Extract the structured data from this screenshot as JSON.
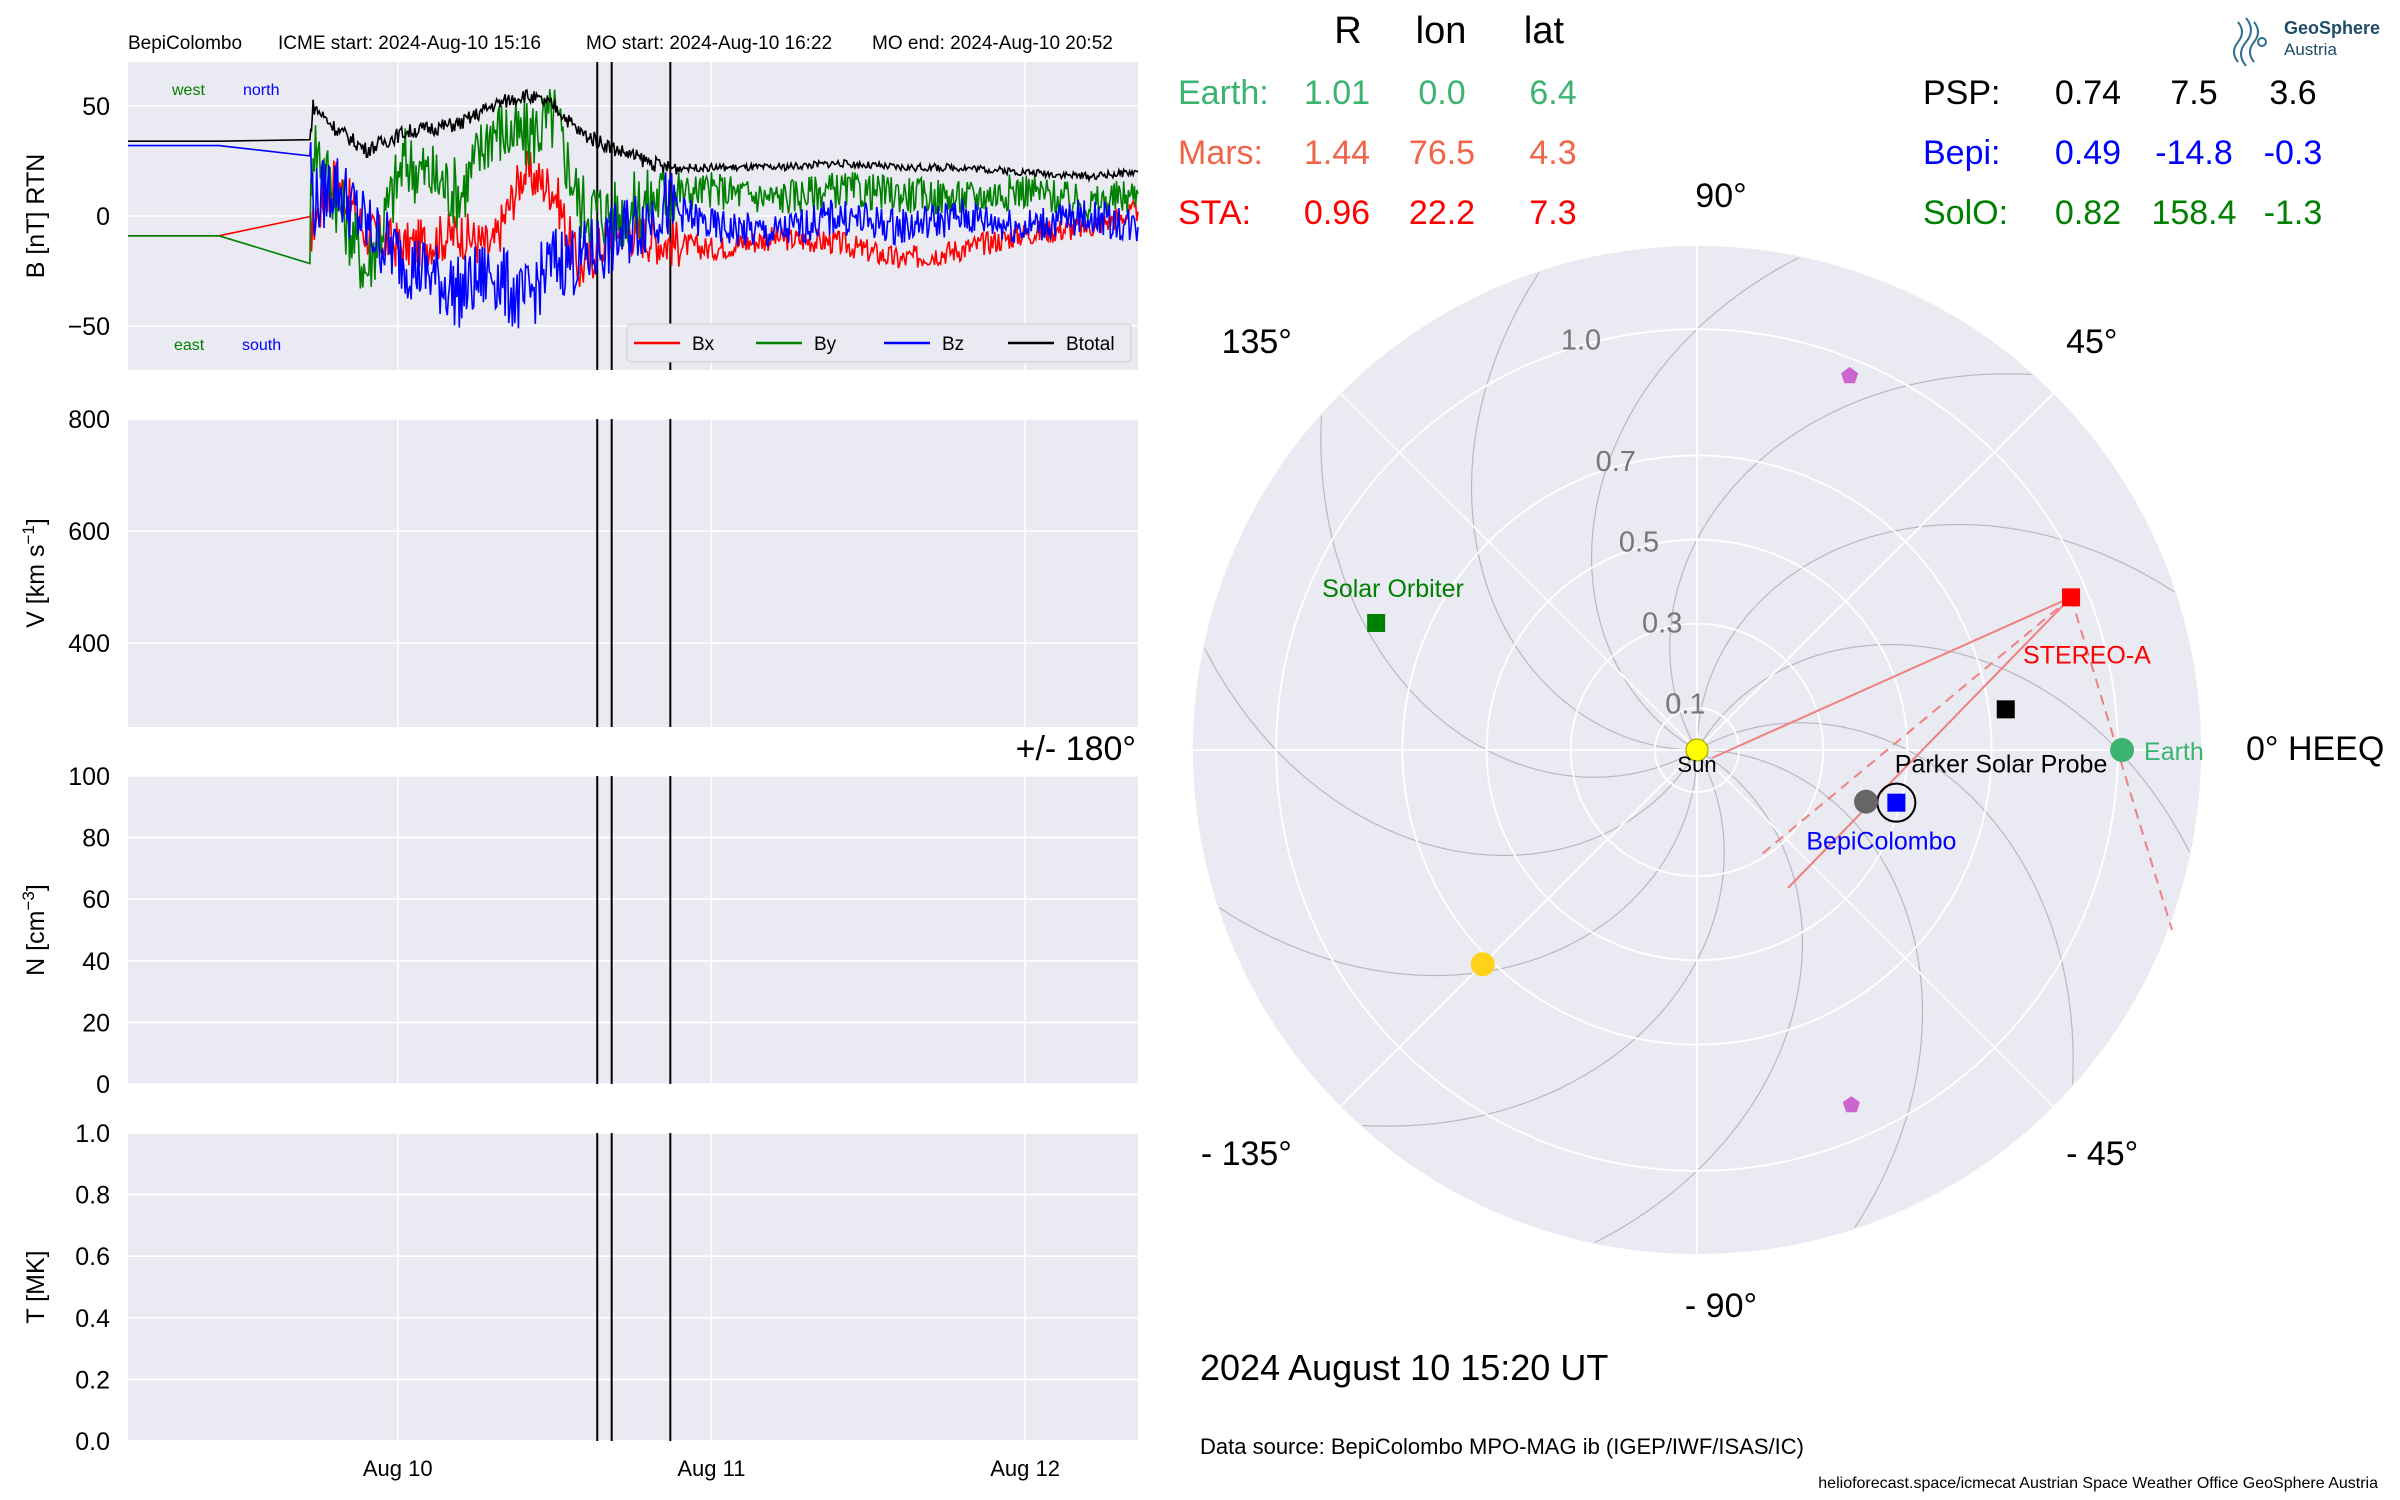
{
  "header": {
    "spacecraft": "BepiColombo",
    "icme_start": "ICME start: 2024-Aug-10 15:16",
    "mo_start": "MO start: 2024-Aug-10 16:22",
    "mo_end": "MO end: 2024-Aug-10 20:52"
  },
  "logo": {
    "name": "GeoSphere",
    "sub": "Austria"
  },
  "date_label": "2024 August 10  15:20 UT",
  "data_source": "Data source: BepiColombo MPO-MAG ib (IGEP/IWF/ISAS/IC)",
  "credits": "helioforecast.space/icmecat   Austrian Space Weather Office   GeoSphere Austria",
  "colors": {
    "panel_bg": "#eaeaf2",
    "grid": "#ffffff",
    "bx": "#ff0000",
    "by": "#008000",
    "bz": "#0000ff",
    "btotal": "#000000",
    "earth": "#3cb371",
    "mars": "#f0654a",
    "sta": "#ff0000",
    "psp": "#000000",
    "bepi": "#0000ff",
    "solo": "#008000",
    "sun": "#ffff00",
    "mercury": "#666666",
    "venus": "#ffd21a",
    "misc": "#cc66cc"
  },
  "chart_data": [
    {
      "type": "line",
      "ylabel": "B [nT] RTN",
      "ylim": [
        -70,
        70
      ],
      "yticks": [
        50,
        0,
        -50
      ],
      "ytick_labels": [
        "50",
        "0",
        "−50"
      ],
      "x_unit": "days from 2024-08-09 00:00 UT",
      "xlim": [
        0.14,
        3.36
      ],
      "xticks": [
        1,
        2,
        3
      ],
      "xtick_labels": [
        "Aug 10",
        "Aug 11",
        "Aug 12"
      ],
      "event_lines": [
        1.636,
        1.682,
        1.869
      ],
      "annotations": {
        "west": "west",
        "north": "north",
        "east": "east",
        "south": "south"
      },
      "legend": {
        "placement": "bottom-right",
        "entries": [
          "Bx",
          "By",
          "Bz",
          "Btotal"
        ]
      },
      "series": [
        {
          "name": "Bx",
          "keypoints": [
            [
              0.14,
              -9
            ],
            [
              0.72,
              -9
            ],
            [
              0.73,
              -4
            ],
            [
              0.8,
              18
            ],
            [
              0.9,
              -8
            ],
            [
              1.02,
              -14
            ],
            [
              1.2,
              -8
            ],
            [
              1.3,
              -15
            ],
            [
              1.4,
              20
            ],
            [
              1.5,
              12
            ],
            [
              1.58,
              -25
            ],
            [
              1.7,
              -5
            ],
            [
              1.85,
              -12
            ],
            [
              2.0,
              -15
            ],
            [
              2.2,
              -10
            ],
            [
              2.4,
              -12
            ],
            [
              2.6,
              -20
            ],
            [
              2.8,
              -15
            ],
            [
              3.0,
              -8
            ],
            [
              3.2,
              -5
            ],
            [
              3.36,
              2
            ]
          ]
        },
        {
          "name": "By",
          "keypoints": [
            [
              0.14,
              -9
            ],
            [
              0.72,
              -9
            ],
            [
              0.73,
              35
            ],
            [
              0.8,
              10
            ],
            [
              0.9,
              -25
            ],
            [
              1.02,
              25
            ],
            [
              1.2,
              10
            ],
            [
              1.3,
              40
            ],
            [
              1.4,
              35
            ],
            [
              1.5,
              45
            ],
            [
              1.58,
              5
            ],
            [
              1.7,
              0
            ],
            [
              1.85,
              10
            ],
            [
              2.0,
              12
            ],
            [
              2.2,
              8
            ],
            [
              2.4,
              12
            ],
            [
              2.6,
              10
            ],
            [
              2.8,
              8
            ],
            [
              3.0,
              12
            ],
            [
              3.2,
              5
            ],
            [
              3.36,
              10
            ]
          ]
        },
        {
          "name": "Bz",
          "keypoints": [
            [
              0.14,
              32
            ],
            [
              0.72,
              32
            ],
            [
              0.73,
              5
            ],
            [
              0.8,
              15
            ],
            [
              0.9,
              -5
            ],
            [
              1.02,
              -20
            ],
            [
              1.2,
              -35
            ],
            [
              1.3,
              -25
            ],
            [
              1.4,
              -40
            ],
            [
              1.5,
              -20
            ],
            [
              1.58,
              -20
            ],
            [
              1.7,
              -10
            ],
            [
              1.85,
              5
            ],
            [
              2.0,
              -5
            ],
            [
              2.2,
              -8
            ],
            [
              2.4,
              0
            ],
            [
              2.6,
              -5
            ],
            [
              2.8,
              0
            ],
            [
              3.0,
              -5
            ],
            [
              3.2,
              0
            ],
            [
              3.36,
              -5
            ]
          ]
        },
        {
          "name": "Btotal",
          "keypoints": [
            [
              0.14,
              34
            ],
            [
              0.72,
              34
            ],
            [
              0.73,
              50
            ],
            [
              0.8,
              40
            ],
            [
              0.9,
              30
            ],
            [
              1.02,
              38
            ],
            [
              1.2,
              42
            ],
            [
              1.3,
              50
            ],
            [
              1.4,
              55
            ],
            [
              1.5,
              50
            ],
            [
              1.58,
              38
            ],
            [
              1.7,
              30
            ],
            [
              1.85,
              22
            ],
            [
              2.0,
              22
            ],
            [
              2.2,
              22
            ],
            [
              2.4,
              24
            ],
            [
              2.6,
              22
            ],
            [
              2.8,
              22
            ],
            [
              3.0,
              20
            ],
            [
              3.2,
              18
            ],
            [
              3.36,
              20
            ]
          ]
        }
      ]
    },
    {
      "type": "line",
      "ylabel": "V [km s",
      "ylabel_sup": "−1",
      "ylabel_end": "]",
      "ylim": [
        250,
        800
      ],
      "yticks": [
        800,
        600,
        400
      ],
      "ytick_labels": [
        "800",
        "600",
        "400"
      ],
      "series": []
    },
    {
      "type": "line",
      "ylabel": "N [cm",
      "ylabel_sup": "−3",
      "ylabel_end": "]",
      "ylim": [
        0,
        100
      ],
      "yticks": [
        100,
        80,
        60,
        40,
        20,
        0
      ],
      "ytick_labels": [
        "100",
        "80",
        "60",
        "40",
        "20",
        "0"
      ],
      "series": []
    },
    {
      "type": "line",
      "ylabel": "T [MK]",
      "ylim": [
        0,
        1
      ],
      "yticks": [
        1,
        0.8,
        0.6,
        0.4,
        0.2,
        0
      ],
      "ytick_labels": [
        "1.0",
        "0.8",
        "0.6",
        "0.4",
        "0.2",
        "0.0"
      ],
      "series": []
    },
    {
      "type": "scatter",
      "projection": "polar",
      "rmax": 1.2,
      "radial_ticks": [
        0.1,
        0.3,
        0.5,
        0.7,
        1.0
      ],
      "radial_tick_labels": [
        "0.1",
        "0.3",
        "0.5",
        "0.7",
        "1.0"
      ],
      "angle_labels": [
        {
          "deg": 0,
          "text": "0° HEEQ"
        },
        {
          "deg": 45,
          "text": "45°"
        },
        {
          "deg": 90,
          "text": "90°"
        },
        {
          "deg": 135,
          "text": "135°"
        },
        {
          "deg": 180,
          "text": "+/- 180°"
        },
        {
          "deg": -135,
          "text": "- 135°"
        },
        {
          "deg": -90,
          "text": "- 90°"
        },
        {
          "deg": -45,
          "text": "- 45°"
        }
      ],
      "table_header": {
        "r": "R",
        "lon": "lon",
        "lat": "lat"
      },
      "table": [
        {
          "name": "Earth:",
          "r": "1.01",
          "lon": "0.0",
          "lat": "6.4",
          "color": "earth"
        },
        {
          "name": "Mars:",
          "r": "1.44",
          "lon": "76.5",
          "lat": "4.3",
          "color": "mars"
        },
        {
          "name": "STA:",
          "r": "0.96",
          "lon": "22.2",
          "lat": "7.3",
          "color": "sta"
        },
        {
          "name": "PSP:",
          "r": "0.74",
          "lon": "7.5",
          "lat": "3.6",
          "color": "psp"
        },
        {
          "name": "Bepi:",
          "r": "0.49",
          "lon": "-14.8",
          "lat": "-0.3",
          "color": "bepi"
        },
        {
          "name": "SolO:",
          "r": "0.82",
          "lon": "158.4",
          "lat": "-1.3",
          "color": "solo"
        }
      ],
      "objects": [
        {
          "name": "Sun",
          "label": "Sun",
          "r": 0,
          "lon": 0,
          "marker": "circle",
          "color": "sun"
        },
        {
          "name": "Earth",
          "label": "Earth",
          "r": 1.01,
          "lon": 0.0,
          "marker": "circle",
          "color": "earth"
        },
        {
          "name": "STEREO-A",
          "label": "STEREO-A",
          "r": 0.96,
          "lon": 22.2,
          "marker": "square",
          "color": "sta"
        },
        {
          "name": "Parker Solar Probe",
          "label": "Parker Solar Probe",
          "r": 0.74,
          "lon": 7.5,
          "marker": "square",
          "color": "psp"
        },
        {
          "name": "BepiColombo",
          "label": "BepiColombo",
          "r": 0.49,
          "lon": -14.8,
          "marker": "square",
          "color": "bepi"
        },
        {
          "name": "Solar Orbiter",
          "label": "Solar Orbiter",
          "r": 0.82,
          "lon": 158.4,
          "marker": "square",
          "color": "solo"
        },
        {
          "name": "Mercury",
          "r": 0.42,
          "lon": -17,
          "marker": "circle",
          "color": "mercury"
        },
        {
          "name": "Venus",
          "r": 0.72,
          "lon": -135,
          "marker": "circle",
          "color": "venus"
        },
        {
          "name": "object-1",
          "r": 0.96,
          "lon": 67.8,
          "marker": "pentagon",
          "color": "misc"
        },
        {
          "name": "object-2",
          "r": 0.92,
          "lon": -66.5,
          "marker": "pentagon",
          "color": "misc"
        }
      ]
    }
  ]
}
